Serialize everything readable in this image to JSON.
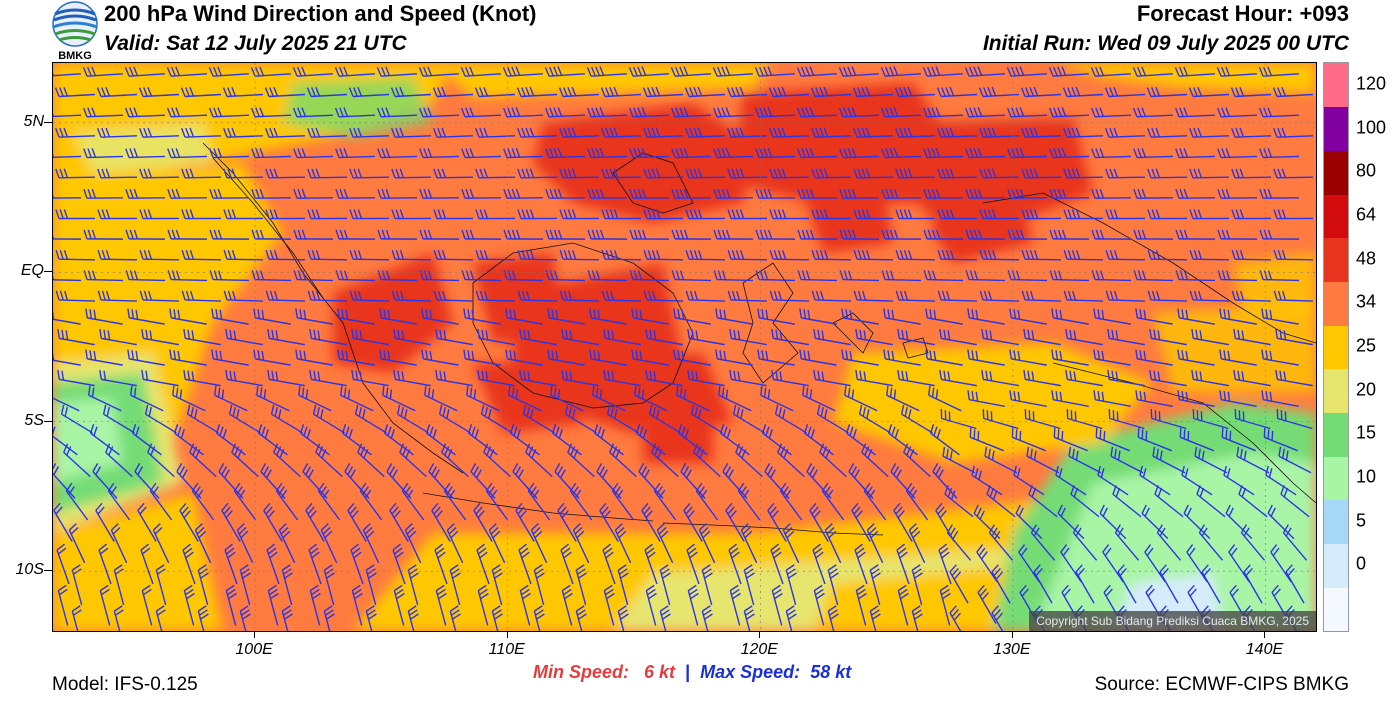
{
  "header": {
    "title": "200 hPa Wind Direction and Speed (Knot)",
    "valid": "Valid: Sat 12 July 2025 21 UTC",
    "forecast_hour": "Forecast Hour: +093",
    "initial_run": "Initial Run: Wed 09 July 2025 00 UTC",
    "logo_text": "BMKG"
  },
  "map": {
    "lat_labels": [
      "5N",
      "EQ",
      "5S",
      "10S"
    ],
    "lat_values": [
      5,
      0,
      -5,
      -10
    ],
    "lon_labels": [
      "100E",
      "110E",
      "120E",
      "130E",
      "140E"
    ],
    "lon_values": [
      100,
      110,
      120,
      130,
      140
    ],
    "extent": {
      "lon_min": 92,
      "lon_max": 142,
      "lat_min": -12,
      "lat_max": 7
    },
    "copyright": "Copyright Sub Bidang Prediksi Cuaca BMKG, 2025",
    "barb_color": "#2b35e6"
  },
  "colorbar": {
    "levels": [
      {
        "label": "",
        "color": "#f4f8ff"
      },
      {
        "label": "0",
        "color": "#d6ecfa"
      },
      {
        "label": "5",
        "color": "#a6d8f8"
      },
      {
        "label": "10",
        "color": "#a9f5a6"
      },
      {
        "label": "15",
        "color": "#74dc74"
      },
      {
        "label": "20",
        "color": "#e6e56e"
      },
      {
        "label": "25",
        "color": "#ffc700"
      },
      {
        "label": "34",
        "color": "#ff7b3f"
      },
      {
        "label": "48",
        "color": "#e8341c"
      },
      {
        "label": "64",
        "color": "#d20c0c"
      },
      {
        "label": "80",
        "color": "#9a0000"
      },
      {
        "label": "100",
        "color": "#8000a0"
      },
      {
        "label": "120",
        "color": "#ff6b88"
      }
    ]
  },
  "footer": {
    "min_speed_label": "Min Speed:",
    "min_speed_value": "6 kt",
    "separator": "|",
    "max_speed_label": "Max Speed:",
    "max_speed_value": "58 kt",
    "model": "Model: IFS-0.125",
    "source": "Source: ECMWF-CIPS BMKG"
  }
}
